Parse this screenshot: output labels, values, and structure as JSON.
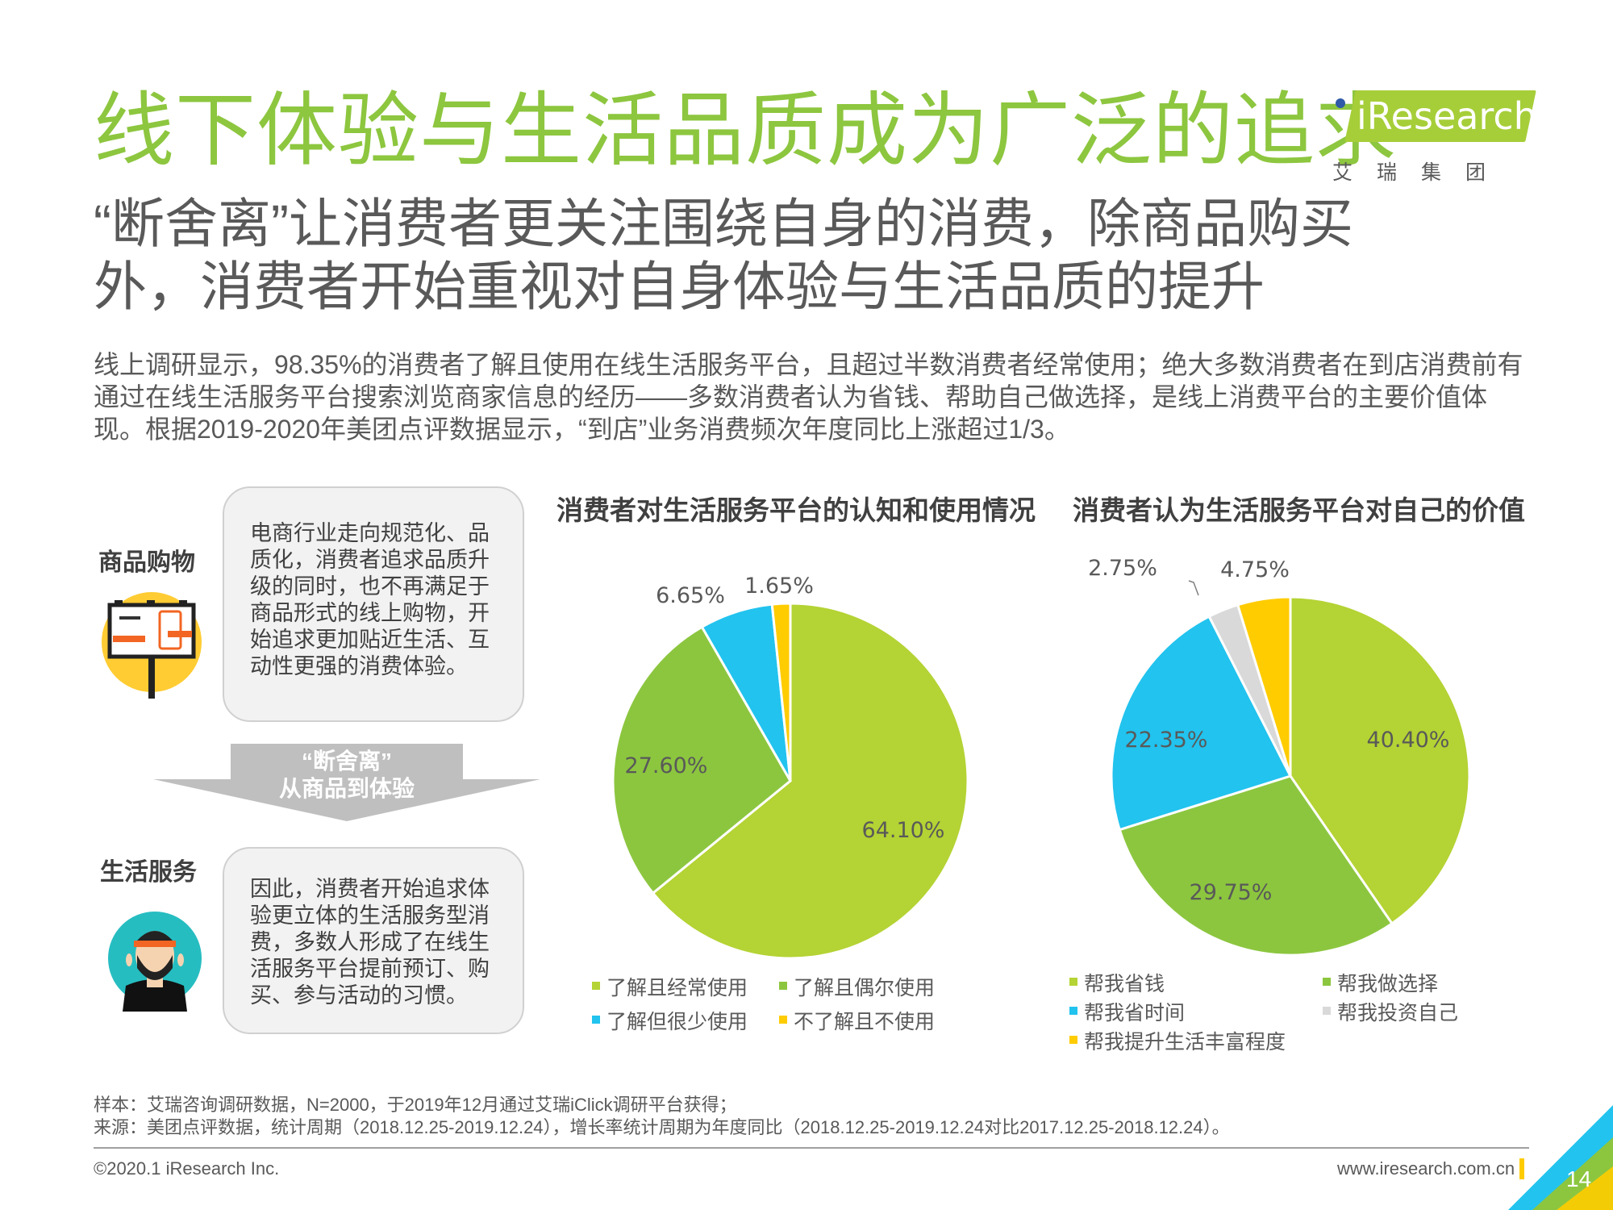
{
  "header": {
    "title": "线下体验与生活品质成为广泛的追求",
    "subtitle_line1": "“断舍离”让消费者更关注围绕自身的消费，除商品购买",
    "subtitle_line2": "外，消费者开始重视对自身体验与生活品质的提升",
    "intro": "线上调研显示，98.35%的消费者了解且使用在线生活服务平台，且超过半数消费者经常使用；绝大多数消费者在到店消费前有通过在线生活服务平台搜索浏览商家信息的经历——多数消费者认为省钱、帮助自己做选择，是线上消费平台的主要价值体现。根据2019-2020年美团点评数据显示，“到店”业务消费频次年度同比上涨超过1/3。"
  },
  "logo": {
    "text": "iResearch",
    "cn": "艾瑞集团"
  },
  "left_panel": {
    "goods_label": "商品购物",
    "goods_text": "电商行业走向规范化、品质化，消费者追求品质升级的同时，也不再满足于商品形式的线上购物，开始追求更加贴近生活、互动性更强的消费体验。",
    "arrow_line1": "“断舍离”",
    "arrow_line2": "从商品到体验",
    "service_label": "生活服务",
    "service_text": "因此，消费者开始追求体验更立体的生活服务型消费，多数人形成了在线生活服务平台提前预订、购买、参与活动的习惯。"
  },
  "chart_data": [
    {
      "type": "pie",
      "title": "消费者对生活服务平台的认知和使用情况",
      "categories": [
        "了解且经常使用",
        "了解且偶尔使用",
        "了解但很少使用",
        "不了解且不使用"
      ],
      "values": [
        64.1,
        27.6,
        6.65,
        1.65
      ],
      "labels": [
        "64.10%",
        "27.60%",
        "6.65%",
        "1.65%"
      ],
      "colors": [
        "#b4d334",
        "#8cc63f",
        "#22c3ee",
        "#ffcc00"
      ],
      "legend_position": "bottom"
    },
    {
      "type": "pie",
      "title": "消费者认为生活服务平台对自己的价值",
      "categories": [
        "帮我省钱",
        "帮我做选择",
        "帮我省时间",
        "帮我投资自己",
        "帮我提升生活丰富程度"
      ],
      "values": [
        40.4,
        29.75,
        22.35,
        2.75,
        4.75
      ],
      "labels": [
        "40.40%",
        "29.75%",
        "22.35%",
        "2.75%",
        "4.75%"
      ],
      "colors": [
        "#b4d334",
        "#8cc63f",
        "#22c3ee",
        "#d9d9d9",
        "#ffcc00"
      ],
      "legend_position": "bottom"
    }
  ],
  "notes": {
    "sample": "样本：艾瑞咨询调研数据，N=2000，于2019年12月通过艾瑞iClick调研平台获得；",
    "source": "来源：美团点评数据，统计周期（2018.12.25-2019.12.24），增长率统计周期为年度同比（2018.12.25-2019.12.24对比2017.12.25-2018.12.24）。"
  },
  "footer": {
    "copyright": "©2020.1 iResearch Inc.",
    "url": "www.iresearch.com.cn",
    "page_number": "14"
  }
}
